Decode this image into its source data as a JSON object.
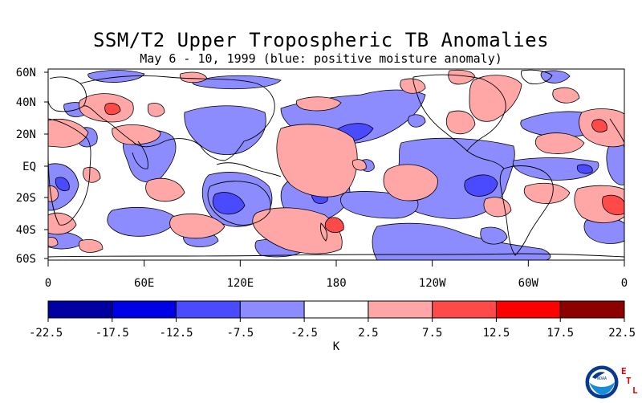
{
  "header": {
    "title": "SSM/T2 Upper Tropospheric TB Anomalies",
    "subtitle": "May 6 - 10, 1999 (blue: positive moisture anomaly)"
  },
  "map": {
    "lat_labels": [
      "60N",
      "40N",
      "20N",
      "EQ",
      "20S",
      "40S",
      "60S"
    ],
    "lon_labels": [
      "0",
      "60E",
      "120E",
      "180",
      "120W",
      "60W",
      "0"
    ]
  },
  "colorbar": {
    "tick_labels": [
      "-22.5",
      "-17.5",
      "-12.5",
      "-7.5",
      "-2.5",
      "2.5",
      "7.5",
      "12.5",
      "17.5",
      "22.5"
    ],
    "colors": [
      "#0000a0",
      "#0000e6",
      "#4a4aff",
      "#8c8cff",
      "#ffffff",
      "#ffa6a6",
      "#ff4a4a",
      "#ff0000",
      "#8c0000"
    ],
    "unit_label": "K"
  },
  "logo": {
    "agency": "NOAA",
    "lab_letters": [
      "E",
      "T",
      "L"
    ],
    "lab_color": "#e00000"
  }
}
